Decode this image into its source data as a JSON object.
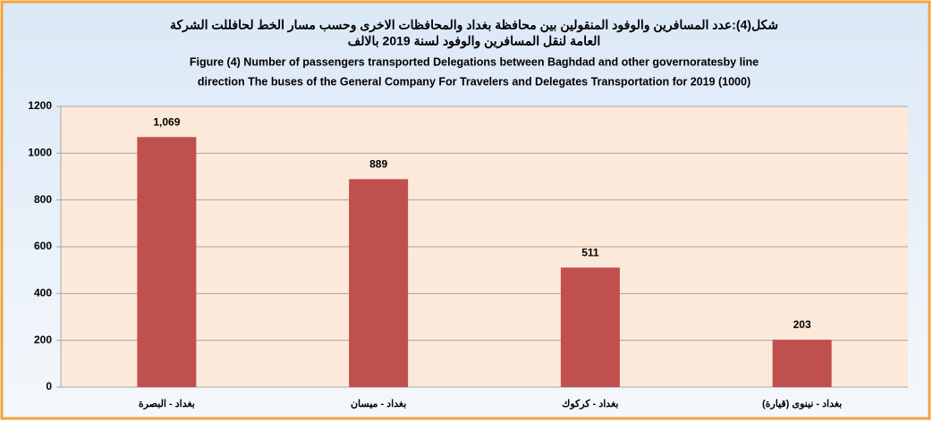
{
  "chart_data": {
    "type": "bar",
    "title": [
      "شكل(4):عدد المسافرين والوفود المنقولين بين محافظة بغداد والمحافظات الاخرى وحسب مسار الخط لحافللت الشركة",
      "العامة لنقل المسافرين والوفود  لسنة 2019 بالالف"
    ],
    "subtitle": [
      "Figure (4) Number of passengers transported Delegations between Baghdad and other governoratesby line",
      "direction  The buses of the General Company For Travelers and Delegates Transportation for  2019 (1000)"
    ],
    "categories": [
      "بغداد - البصرة",
      "بغداد - ميسان",
      "بغداد - كركوك",
      "بغداد - نينوى (قيارة)"
    ],
    "values": [
      1069,
      889,
      511,
      203
    ],
    "value_labels": [
      "1,069",
      "889",
      "511",
      "203"
    ],
    "color": "#c0504d",
    "ylim": [
      0,
      1200
    ],
    "yticks": [
      0,
      200,
      400,
      600,
      800,
      1000,
      1200
    ],
    "grid": true
  }
}
